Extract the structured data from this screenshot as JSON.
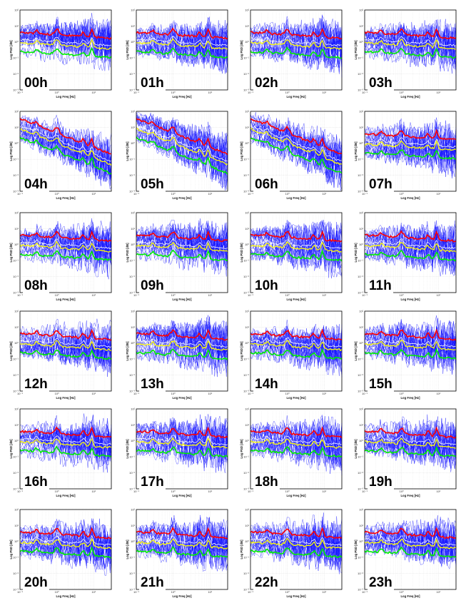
{
  "chart_data": {
    "type": "line",
    "layout": "grid",
    "panel_common": {
      "xlabel": "Log Freq [Hz]",
      "ylabel": "Log PSD [dB]",
      "x_scale": "log",
      "y_scale": "log",
      "xlim": [
        0.1,
        30
      ],
      "ylim": [
        0.001,
        100
      ],
      "x_ticks": [
        "10⁻¹",
        "10⁰",
        "10¹"
      ],
      "y_ticks": [
        "10²",
        "10¹",
        "10⁰",
        "10⁻¹",
        "10⁻²",
        "10⁻³"
      ],
      "grid": true,
      "series_colors": {
        "individual": "#1010ff",
        "upper": "#ff0000",
        "median": "#ffff00",
        "lower": "#00ee00",
        "mean": "#ffffff"
      }
    },
    "panels": [
      {
        "label": "00h"
      },
      {
        "label": "01h"
      },
      {
        "label": "02h"
      },
      {
        "label": "03h"
      },
      {
        "label": "04h"
      },
      {
        "label": "05h"
      },
      {
        "label": "06h"
      },
      {
        "label": "07h"
      },
      {
        "label": "08h"
      },
      {
        "label": "09h"
      },
      {
        "label": "10h"
      },
      {
        "label": "11h"
      },
      {
        "label": "12h"
      },
      {
        "label": "13h"
      },
      {
        "label": "14h"
      },
      {
        "label": "15h"
      },
      {
        "label": "16h"
      },
      {
        "label": "17h"
      },
      {
        "label": "18h"
      },
      {
        "label": "19h"
      },
      {
        "label": "20h"
      },
      {
        "label": "21h"
      },
      {
        "label": "22h"
      },
      {
        "label": "23h"
      }
    ]
  }
}
